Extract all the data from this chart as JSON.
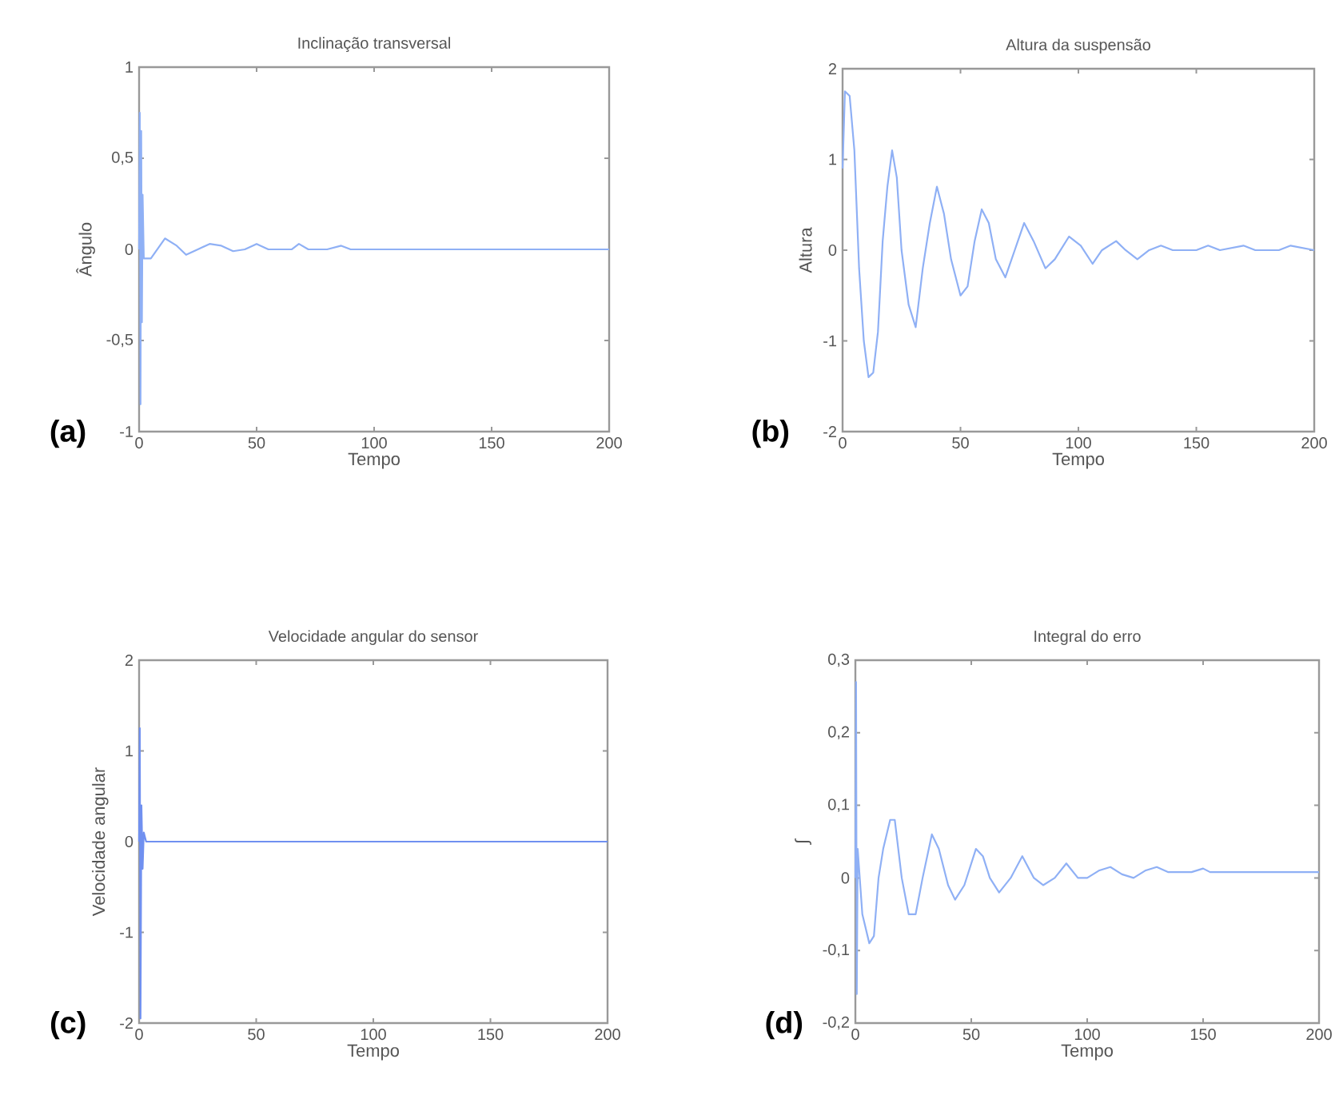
{
  "chart_data": [
    {
      "type": "line",
      "title": "Inclinação transversal",
      "xlabel": "Tempo",
      "ylabel": "Ângulo",
      "annotations": [
        "(a)"
      ],
      "xlim": [
        0,
        200
      ],
      "ylim": [
        -1,
        1
      ],
      "xticks": [
        0,
        50,
        100,
        150,
        200
      ],
      "yticks": [
        -1,
        {
          "value": -0.5,
          "label": "-0,5"
        },
        0,
        {
          "value": 0.5,
          "label": "0,5"
        },
        1
      ],
      "series": [
        {
          "color": "#8fb0f5",
          "x": [
            0,
            0.3,
            0.6,
            0.9,
            1.2,
            1.5,
            2,
            5,
            11,
            16,
            20,
            25,
            30,
            35,
            40,
            45,
            50,
            55,
            60,
            65,
            68,
            72,
            80,
            86,
            90,
            200
          ],
          "values": [
            0,
            0.75,
            -0.85,
            0.65,
            -0.4,
            0.3,
            -0.05,
            -0.05,
            0.06,
            0.02,
            -0.03,
            0.0,
            0.03,
            0.02,
            -0.01,
            0.0,
            0.03,
            0.0,
            0.0,
            0.0,
            0.03,
            0.0,
            0.0,
            0.02,
            0.0,
            0.0
          ]
        }
      ]
    },
    {
      "type": "line",
      "title": "Altura da suspensão",
      "xlabel": "Tempo",
      "ylabel": "Altura",
      "annotations": [
        "(b)"
      ],
      "xlim": [
        0,
        200
      ],
      "ylim": [
        -2,
        2
      ],
      "xticks": [
        0,
        50,
        100,
        150,
        200
      ],
      "yticks": [
        -2,
        -1,
        0,
        1,
        2
      ],
      "series": [
        {
          "color": "#8fb0f5",
          "x": [
            0,
            1,
            3,
            5,
            7,
            9,
            11,
            13,
            15,
            17,
            19,
            21,
            23,
            25,
            28,
            31,
            34,
            37,
            40,
            43,
            46,
            50,
            53,
            56,
            59,
            62,
            65,
            69,
            73,
            77,
            81,
            86,
            90,
            96,
            101,
            106,
            110,
            116,
            120,
            125,
            130,
            135,
            140,
            150,
            155,
            160,
            170,
            175,
            185,
            190,
            200
          ],
          "values": [
            0.9,
            1.75,
            1.7,
            1.1,
            -0.2,
            -1.0,
            -1.4,
            -1.35,
            -0.9,
            0.1,
            0.7,
            1.1,
            0.8,
            0.0,
            -0.6,
            -0.85,
            -0.2,
            0.3,
            0.7,
            0.4,
            -0.1,
            -0.5,
            -0.4,
            0.1,
            0.45,
            0.3,
            -0.1,
            -0.3,
            0.0,
            0.3,
            0.1,
            -0.2,
            -0.1,
            0.15,
            0.05,
            -0.15,
            0.0,
            0.1,
            0.0,
            -0.1,
            0.0,
            0.05,
            0.0,
            0.0,
            0.05,
            0.0,
            0.05,
            0.0,
            0.0,
            0.05,
            0.0
          ]
        }
      ]
    },
    {
      "type": "line",
      "title": "Velocidade angular do sensor",
      "xlabel": "Tempo",
      "ylabel": "Velocidade angular",
      "annotations": [
        "(c)"
      ],
      "xlim": [
        0,
        200
      ],
      "ylim": [
        -2,
        2
      ],
      "xticks": [
        0,
        50,
        100,
        150,
        200
      ],
      "yticks": [
        -2,
        -1,
        0,
        1,
        2
      ],
      "series": [
        {
          "color": "#7090f0",
          "x": [
            0,
            0.3,
            0.6,
            1,
            1.5,
            2,
            3,
            200
          ],
          "values": [
            0,
            1.25,
            -1.95,
            0.4,
            -0.3,
            0.1,
            0.0,
            0.0
          ]
        }
      ]
    },
    {
      "type": "line",
      "title": "Integral do erro",
      "xlabel": "Tempo",
      "ylabel": "∫",
      "annotations": [
        "(d)"
      ],
      "xlim": [
        0,
        200
      ],
      "ylim": [
        -0.2,
        0.3
      ],
      "xticks": [
        0,
        50,
        100,
        150,
        200
      ],
      "yticks": [
        {
          "value": -0.2,
          "label": "-0,2"
        },
        {
          "value": -0.1,
          "label": "-0,1"
        },
        0,
        {
          "value": 0.1,
          "label": "0,1"
        },
        {
          "value": 0.2,
          "label": "0,2"
        },
        {
          "value": 0.3,
          "label": "0,3"
        }
      ],
      "series": [
        {
          "color": "#8fb0f5",
          "x": [
            0,
            0.3,
            0.6,
            1,
            3,
            6,
            8,
            10,
            12,
            15,
            17,
            20,
            23,
            26,
            29,
            33,
            36,
            40,
            43,
            47,
            52,
            55,
            58,
            62,
            67,
            72,
            77,
            81,
            86,
            91,
            96,
            100,
            105,
            110,
            115,
            120,
            125,
            130,
            135,
            145,
            150,
            153,
            200
          ],
          "values": [
            0,
            0.27,
            -0.16,
            0.04,
            -0.05,
            -0.09,
            -0.08,
            0.0,
            0.04,
            0.08,
            0.08,
            0.0,
            -0.05,
            -0.05,
            0.0,
            0.06,
            0.04,
            -0.01,
            -0.03,
            -0.01,
            0.04,
            0.03,
            0.0,
            -0.02,
            0.0,
            0.03,
            0.0,
            -0.01,
            0.0,
            0.02,
            0.0,
            0.0,
            0.01,
            0.015,
            0.005,
            0.0,
            0.01,
            0.015,
            0.008,
            0.008,
            0.013,
            0.008,
            0.008
          ]
        }
      ]
    }
  ]
}
